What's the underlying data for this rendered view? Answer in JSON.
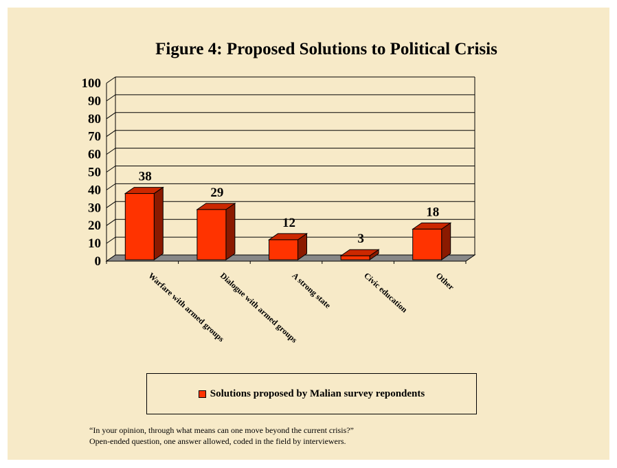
{
  "chart_data": {
    "type": "bar",
    "title": "Figure 4:  Proposed Solutions to Political Crisis",
    "categories": [
      "Warfare with armed groups",
      "Dialogue with armed groups",
      "A strong state",
      "Civic education",
      "Other"
    ],
    "series": [
      {
        "name": "Solutions proposed by Malian survey repondents",
        "values": [
          38,
          29,
          12,
          3,
          18
        ]
      }
    ],
    "ylim": [
      0,
      100
    ],
    "yticks": [
      0,
      10,
      20,
      30,
      40,
      50,
      60,
      70,
      80,
      90,
      100
    ],
    "grid": true,
    "three_d": true,
    "legend_position": "bottom",
    "colors": {
      "bar_front": "#ff3300",
      "bar_side": "#8b1a00",
      "bar_top": "#cc2800",
      "floor": "#888888",
      "background": "#f7eac8"
    }
  },
  "footnote": {
    "line1": "“In your opinion, through what means can one move beyond the current crisis?”",
    "line2": "Open-ended question, one answer allowed, coded in the field by interviewers."
  }
}
